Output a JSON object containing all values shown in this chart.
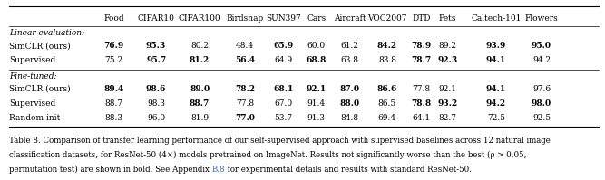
{
  "columns": [
    "Food",
    "CIFAR10",
    "CIFAR100",
    "Birdsnap",
    "SUN397",
    "Cars",
    "Aircraft",
    "VOC2007",
    "DTD",
    "Pets",
    "Caltech-101",
    "Flowers"
  ],
  "section1_label": "Linear evaluation:",
  "section2_label": "Fine-tuned:",
  "rows": [
    {
      "label": "SimCLR (ours)",
      "values": [
        "76.9",
        "95.3",
        "80.2",
        "48.4",
        "65.9",
        "60.0",
        "61.2",
        "84.2",
        "78.9",
        "89.2",
        "93.9",
        "95.0"
      ],
      "bold": [
        true,
        true,
        false,
        false,
        true,
        false,
        false,
        true,
        true,
        false,
        true,
        true
      ]
    },
    {
      "label": "Supervised",
      "values": [
        "75.2",
        "95.7",
        "81.2",
        "56.4",
        "64.9",
        "68.8",
        "63.8",
        "83.8",
        "78.7",
        "92.3",
        "94.1",
        "94.2"
      ],
      "bold": [
        false,
        true,
        true,
        true,
        false,
        true,
        false,
        false,
        true,
        true,
        true,
        false
      ]
    },
    {
      "label": "SimCLR (ours)",
      "values": [
        "89.4",
        "98.6",
        "89.0",
        "78.2",
        "68.1",
        "92.1",
        "87.0",
        "86.6",
        "77.8",
        "92.1",
        "94.1",
        "97.6"
      ],
      "bold": [
        true,
        true,
        true,
        true,
        true,
        true,
        true,
        true,
        false,
        false,
        true,
        false
      ]
    },
    {
      "label": "Supervised",
      "values": [
        "88.7",
        "98.3",
        "88.7",
        "77.8",
        "67.0",
        "91.4",
        "88.0",
        "86.5",
        "78.8",
        "93.2",
        "94.2",
        "98.0"
      ],
      "bold": [
        false,
        false,
        true,
        false,
        false,
        false,
        true,
        false,
        true,
        true,
        true,
        true
      ]
    },
    {
      "label": "Random init",
      "values": [
        "88.3",
        "96.0",
        "81.9",
        "77.0",
        "53.7",
        "91.3",
        "84.8",
        "69.4",
        "64.1",
        "82.7",
        "72.5",
        "92.5"
      ],
      "bold": [
        false,
        false,
        false,
        true,
        false,
        false,
        false,
        false,
        false,
        false,
        false,
        false
      ]
    }
  ],
  "caption_part1": "Table 8.",
  "caption_line1": "Table 8. Comparison of transfer learning performance of our self-supervised approach with supervised baselines across 12 natural image",
  "caption_line2": "classification datasets, for ResNet-50 (4×) models pretrained on ImageNet. Results not significantly worse than the best (ρ > 0.05,",
  "caption_line3_before": "permutation test) are shown in bold. See Appendix ",
  "caption_line3_link": "B.8",
  "caption_line3_after": " for experimental details and results with standard ResNet-50.",
  "link_color": "#3366cc",
  "bg_color": "#ffffff",
  "fontsize": 6.5,
  "caption_fontsize": 6.2
}
